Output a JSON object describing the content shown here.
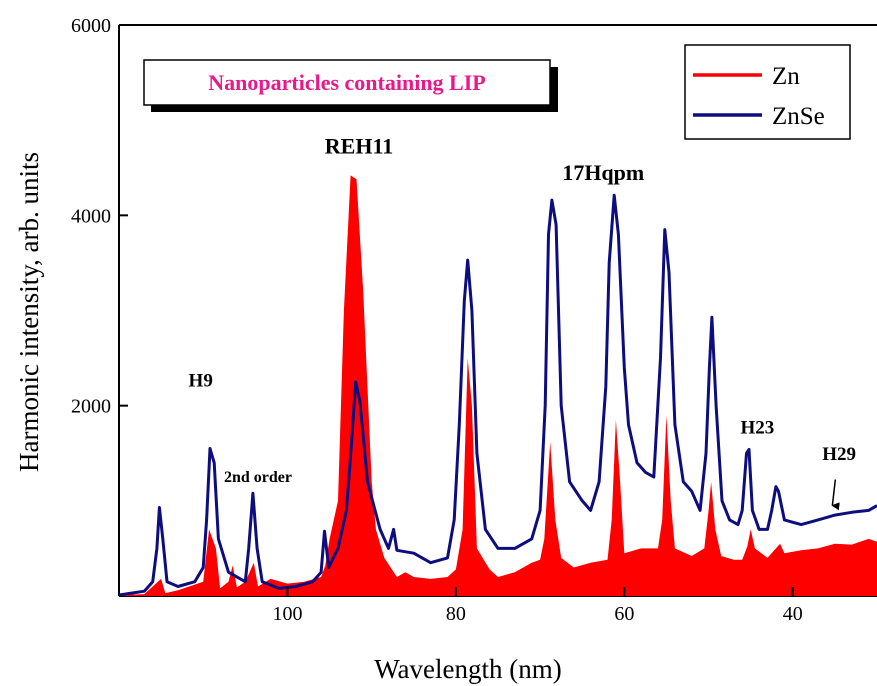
{
  "chart_data": {
    "type": "line",
    "title": "Nanoparticles containing LIP",
    "title_color": "#e8198b",
    "xlabel": "Wavelength (nm)",
    "ylabel": "Harmonic intensity, arb. units",
    "xlim": [
      120,
      30
    ],
    "ylim": [
      0,
      6000
    ],
    "x_ticks": [
      100,
      80,
      60,
      40
    ],
    "y_ticks": [
      2000,
      4000,
      6000
    ],
    "grid": false,
    "legend_position": "top-right",
    "series": [
      {
        "name": "Zn",
        "color": "#ff0000",
        "style": "filled",
        "points": [
          [
            120,
            10
          ],
          [
            117,
            20
          ],
          [
            115,
            180
          ],
          [
            114.5,
            30
          ],
          [
            113,
            60
          ],
          [
            110,
            150
          ],
          [
            109.3,
            700
          ],
          [
            108.5,
            500
          ],
          [
            108,
            80
          ],
          [
            107,
            150
          ],
          [
            106.5,
            320
          ],
          [
            106,
            90
          ],
          [
            105,
            150
          ],
          [
            104,
            350
          ],
          [
            103.5,
            100
          ],
          [
            102,
            180
          ],
          [
            100,
            130
          ],
          [
            98,
            150
          ],
          [
            96,
            200
          ],
          [
            95.5,
            320
          ],
          [
            95,
            600
          ],
          [
            94,
            1000
          ],
          [
            93.3,
            3000
          ],
          [
            92.5,
            4420
          ],
          [
            91.8,
            4380
          ],
          [
            91,
            3200
          ],
          [
            90,
            1200
          ],
          [
            89.5,
            700
          ],
          [
            88.5,
            400
          ],
          [
            87,
            200
          ],
          [
            86,
            250
          ],
          [
            85,
            200
          ],
          [
            83,
            180
          ],
          [
            81,
            200
          ],
          [
            80,
            280
          ],
          [
            79.2,
            700
          ],
          [
            78.6,
            2500
          ],
          [
            78.1,
            2000
          ],
          [
            77.5,
            500
          ],
          [
            76,
            280
          ],
          [
            75,
            200
          ],
          [
            73,
            250
          ],
          [
            71,
            350
          ],
          [
            70,
            380
          ],
          [
            69.5,
            600
          ],
          [
            68.8,
            1620
          ],
          [
            68.2,
            800
          ],
          [
            67.5,
            400
          ],
          [
            66,
            300
          ],
          [
            64,
            350
          ],
          [
            62,
            380
          ],
          [
            61.5,
            800
          ],
          [
            61,
            1850
          ],
          [
            60.5,
            1200
          ],
          [
            60,
            450
          ],
          [
            58,
            500
          ],
          [
            56,
            500
          ],
          [
            55.5,
            800
          ],
          [
            55,
            1900
          ],
          [
            54.5,
            1000
          ],
          [
            54,
            500
          ],
          [
            52,
            420
          ],
          [
            50.5,
            500
          ],
          [
            50,
            900
          ],
          [
            49.7,
            1200
          ],
          [
            49.2,
            700
          ],
          [
            48.5,
            420
          ],
          [
            47,
            380
          ],
          [
            46,
            380
          ],
          [
            45.4,
            520
          ],
          [
            45,
            700
          ],
          [
            44.5,
            500
          ],
          [
            43,
            400
          ],
          [
            42,
            500
          ],
          [
            41.5,
            550
          ],
          [
            41,
            450
          ],
          [
            39,
            480
          ],
          [
            37,
            500
          ],
          [
            35,
            550
          ],
          [
            33,
            540
          ],
          [
            31,
            600
          ],
          [
            30,
            570
          ]
        ]
      },
      {
        "name": "ZnSe",
        "color": "#0d0d80",
        "style": "line",
        "points": [
          [
            120,
            10
          ],
          [
            117,
            50
          ],
          [
            116,
            150
          ],
          [
            115.5,
            500
          ],
          [
            115.2,
            930
          ],
          [
            114.8,
            600
          ],
          [
            114.3,
            150
          ],
          [
            113,
            100
          ],
          [
            111,
            150
          ],
          [
            110,
            300
          ],
          [
            109.6,
            800
          ],
          [
            109.2,
            1550
          ],
          [
            108.7,
            1400
          ],
          [
            108.2,
            600
          ],
          [
            107,
            250
          ],
          [
            105,
            150
          ],
          [
            104.6,
            500
          ],
          [
            104.1,
            1080
          ],
          [
            103.6,
            500
          ],
          [
            103,
            150
          ],
          [
            101,
            80
          ],
          [
            99,
            100
          ],
          [
            97,
            150
          ],
          [
            96,
            250
          ],
          [
            95.6,
            680
          ],
          [
            95.1,
            300
          ],
          [
            94,
            500
          ],
          [
            93,
            900
          ],
          [
            92.4,
            1600
          ],
          [
            91.9,
            2250
          ],
          [
            91.4,
            2050
          ],
          [
            90.5,
            1200
          ],
          [
            89,
            700
          ],
          [
            88,
            500
          ],
          [
            87.4,
            700
          ],
          [
            87,
            480
          ],
          [
            85,
            450
          ],
          [
            83,
            350
          ],
          [
            81,
            400
          ],
          [
            80.2,
            800
          ],
          [
            79.6,
            1800
          ],
          [
            79,
            3100
          ],
          [
            78.6,
            3530
          ],
          [
            78.1,
            3000
          ],
          [
            77.5,
            1500
          ],
          [
            76.5,
            700
          ],
          [
            75,
            500
          ],
          [
            73,
            500
          ],
          [
            71,
            600
          ],
          [
            70,
            900
          ],
          [
            69.4,
            2000
          ],
          [
            69,
            3800
          ],
          [
            68.6,
            4160
          ],
          [
            68.1,
            3900
          ],
          [
            67.5,
            2000
          ],
          [
            66.5,
            1200
          ],
          [
            65,
            1000
          ],
          [
            64,
            900
          ],
          [
            63,
            1200
          ],
          [
            62.2,
            2200
          ],
          [
            61.8,
            3500
          ],
          [
            61.2,
            4210
          ],
          [
            60.7,
            3800
          ],
          [
            60,
            2400
          ],
          [
            59.5,
            1800
          ],
          [
            58.5,
            1400
          ],
          [
            57.5,
            1300
          ],
          [
            56.5,
            1250
          ],
          [
            55.7,
            2500
          ],
          [
            55.2,
            3850
          ],
          [
            54.7,
            3400
          ],
          [
            54,
            1800
          ],
          [
            53,
            1200
          ],
          [
            52,
            1100
          ],
          [
            51,
            900
          ],
          [
            50.3,
            1500
          ],
          [
            49.9,
            2400
          ],
          [
            49.6,
            2930
          ],
          [
            49.1,
            2000
          ],
          [
            48.4,
            1000
          ],
          [
            47.5,
            800
          ],
          [
            46.5,
            750
          ],
          [
            46,
            900
          ],
          [
            45.5,
            1500
          ],
          [
            45.2,
            1540
          ],
          [
            44.8,
            900
          ],
          [
            44,
            700
          ],
          [
            43,
            700
          ],
          [
            42.5,
            900
          ],
          [
            42,
            1150
          ],
          [
            41.7,
            1100
          ],
          [
            41,
            800
          ],
          [
            39,
            750
          ],
          [
            37,
            800
          ],
          [
            35,
            850
          ],
          [
            33,
            880
          ],
          [
            31,
            900
          ],
          [
            30,
            950
          ]
        ]
      }
    ],
    "annotations": [
      {
        "text": "REH11",
        "x": 91.5,
        "y": 4650,
        "size": 22
      },
      {
        "text": "17Hqpm",
        "x": 62.5,
        "y": 4370,
        "size": 22
      },
      {
        "text": "H9",
        "x": 110.3,
        "y": 2200,
        "size": 19
      },
      {
        "text": "2nd order",
        "x": 103.5,
        "y": 1200,
        "size": 16
      },
      {
        "text": "H23",
        "x": 44.2,
        "y": 1710,
        "size": 19
      },
      {
        "text": "H29",
        "x": 34.5,
        "y": 1430,
        "size": 19
      }
    ],
    "arrows": [
      {
        "label": "H29",
        "target_x": 35.3,
        "target_y": 930
      }
    ]
  }
}
